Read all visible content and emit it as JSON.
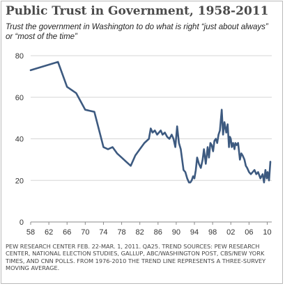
{
  "chart_data": {
    "type": "line",
    "title": "Public Trust in Government, 1958-2011",
    "subtitle": "Trust the government in Washington to do what is right “just about always” or “most of the time”",
    "xlabel": "",
    "ylabel": "",
    "xlim": [
      1958,
      2011
    ],
    "ylim": [
      0,
      80
    ],
    "yticks": [
      0,
      20,
      40,
      60,
      80
    ],
    "xticks": [
      1958,
      1962,
      1966,
      1970,
      1974,
      1978,
      1982,
      1986,
      1990,
      1994,
      1998,
      2002,
      2006,
      2010
    ],
    "xtick_labels": [
      "58",
      "62",
      "66",
      "70",
      "74",
      "78",
      "82",
      "86",
      "90",
      "94",
      "98",
      "02",
      "06",
      "10"
    ],
    "grid": "horizontal",
    "legend": "none",
    "line_color": "#3d5a80",
    "series": [
      {
        "x": [
          1958,
          1964,
          1966,
          1968,
          1970,
          1972,
          1974,
          1975,
          1976,
          1977,
          1978,
          1979,
          1980,
          1981,
          1982,
          1983,
          1984,
          1984.4,
          1984.8,
          1985.3,
          1985.8,
          1986.2,
          1986.6,
          1987,
          1987.5,
          1988,
          1988.5,
          1989,
          1989.4,
          1989.8,
          1990.2,
          1990.6,
          1991,
          1991.3,
          1991.6,
          1992,
          1992.4,
          1992.8,
          1993.1,
          1993.4,
          1993.7,
          1994,
          1994.3,
          1994.6,
          1995,
          1995.4,
          1995.8,
          1996.1,
          1996.5,
          1996.9,
          1997.2,
          1997.5,
          1997.8,
          1998.1,
          1998.4,
          1998.7,
          1999,
          1999.3,
          1999.6,
          2000,
          2000.3,
          2000.6,
          2001,
          2001.3,
          2001.6,
          2001.8,
          2002,
          2002.2,
          2002.5,
          2002.8,
          2003,
          2003.3,
          2003.6,
          2004,
          2004.3,
          2004.6,
          2005,
          2005.3,
          2005.6,
          2006,
          2006.4,
          2006.8,
          2007.2,
          2007.6,
          2008,
          2008.5,
          2009,
          2009.3,
          2009.6,
          2009.9,
          2010.1,
          2010.4,
          2010.7
        ],
        "y": [
          73,
          77,
          65,
          62,
          54,
          53,
          36,
          35,
          36,
          33,
          31,
          29,
          27,
          32,
          35,
          38,
          40,
          45,
          43,
          44,
          42,
          43,
          44,
          42,
          43,
          41,
          40,
          42,
          40,
          36,
          46,
          38,
          35,
          30,
          25,
          24,
          21,
          19,
          19,
          20,
          22,
          21,
          25,
          31,
          28,
          26,
          30,
          35,
          28,
          36,
          31,
          38,
          37,
          34,
          39,
          40,
          38,
          42,
          44,
          54,
          42,
          48,
          43,
          47,
          36,
          41,
          40,
          36,
          38,
          35,
          38,
          37,
          38,
          30,
          33,
          32,
          30,
          27,
          26,
          24,
          23,
          24,
          25,
          23,
          24,
          21,
          23,
          19,
          25,
          21,
          24,
          20,
          29
        ]
      }
    ]
  },
  "footnote": {
    "upper": "Pew Research Center Feb. 22-Mar. 1, 2011. QA25. Trend sources: Pew Research Center, National Election Studies, Gallup, ABC/Washington Post, CBS/New York Times, and CNN Polls.",
    "rest": "From 1976-2010 the trend line represents a three-survey moving average."
  }
}
